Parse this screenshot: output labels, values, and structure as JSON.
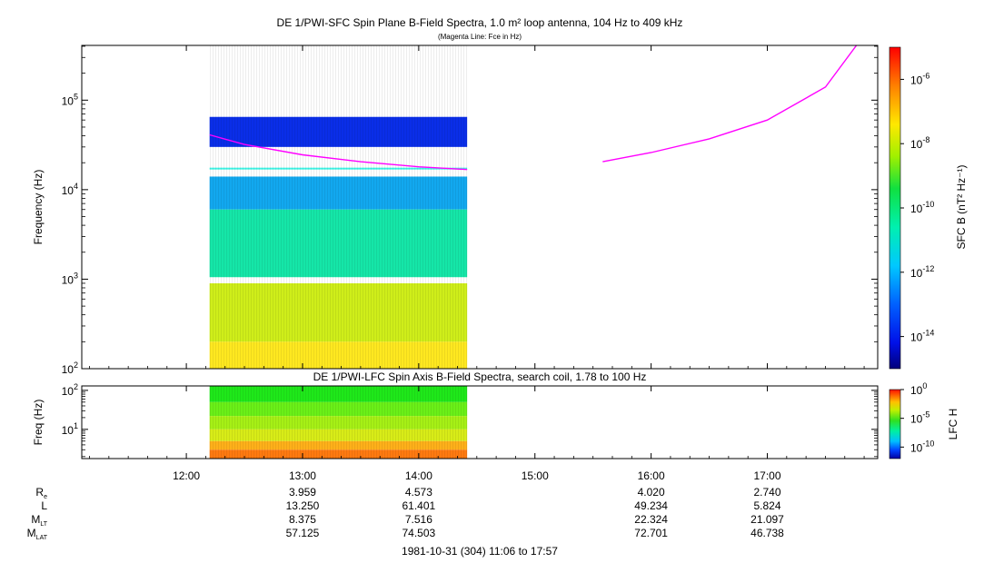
{
  "chart_data": [
    {
      "type": "heatmap",
      "title": "DE 1/PWI-SFC  Spin Plane B-Field Spectra, 1.0 m² loop antenna, 104 Hz to 409 kHz",
      "subtitle": "(Magenta Line: Fce in Hz)",
      "ylabel": "Frequency (Hz)",
      "yscale": "log",
      "ylim": [
        100,
        409000
      ],
      "y_ticks": [
        {
          "value": 100,
          "base": "10",
          "exp": "2"
        },
        {
          "value": 1000,
          "base": "10",
          "exp": "3"
        },
        {
          "value": 10000,
          "base": "10",
          "exp": "4"
        },
        {
          "value": 100000,
          "base": "10",
          "exp": "5"
        }
      ],
      "xlim": [
        "11:06",
        "17:57"
      ],
      "data_interval": [
        "12:12",
        "14:25"
      ],
      "data_gaps_hz": [
        [
          900,
          1050
        ]
      ],
      "spectral_bands": [
        {
          "f_range": [
            30000,
            65000
          ],
          "level": "~1e-14",
          "color": "#0a2ee8"
        },
        {
          "f_range": [
            16800,
            17600
          ],
          "level": "~1e-12",
          "color": "#3ff5e6"
        },
        {
          "f_range": [
            6000,
            14000
          ],
          "level": "~1e-12",
          "color": "#12a8ef"
        },
        {
          "f_range": [
            1050,
            6000
          ],
          "level": "~1e-11",
          "color": "#15e6a8"
        },
        {
          "f_range": [
            200,
            900
          ],
          "level": "~1e-9",
          "color": "#cfee1a"
        },
        {
          "f_range": [
            100,
            200
          ],
          "level": "~1e-8",
          "color": "#ffe820"
        }
      ],
      "fce_line": {
        "name": "Fce in Hz",
        "color": "#ff00ff",
        "segments": [
          {
            "t": [
              "12:12",
              "12:30",
              "13:00",
              "13:30",
              "14:00",
              "14:25"
            ],
            "f": [
              41000,
              32000,
              24500,
              20500,
              18000,
              16800
            ]
          },
          {
            "t": [
              "15:35",
              "16:00",
              "16:30",
              "17:00",
              "17:30",
              "17:46"
            ],
            "f": [
              20500,
              26000,
              37000,
              60000,
              140000,
              409000
            ]
          }
        ]
      },
      "colorbar": {
        "label": "SFC B (nT² Hz⁻¹)",
        "scale": "log",
        "range": [
          1e-15,
          1e-05
        ],
        "ticks": [
          {
            "value": 1e-06,
            "base": "10",
            "exp": "-6"
          },
          {
            "value": 1e-08,
            "base": "10",
            "exp": "-8"
          },
          {
            "value": 1e-10,
            "base": "10",
            "exp": "-10"
          },
          {
            "value": 1e-12,
            "base": "10",
            "exp": "-12"
          },
          {
            "value": 1e-14,
            "base": "10",
            "exp": "-14"
          }
        ]
      }
    },
    {
      "type": "heatmap",
      "title": "DE 1/PWI-LFC  Spin Axis B-Field Spectra, search coil, 1.78 to 100 Hz",
      "ylabel": "Freq (Hz)",
      "yscale": "log",
      "ylim": [
        1.78,
        130
      ],
      "y_ticks": [
        {
          "value": 10,
          "base": "10",
          "exp": "1"
        },
        {
          "value": 100,
          "base": "10",
          "exp": "2"
        }
      ],
      "xlim": [
        "11:06",
        "17:57"
      ],
      "data_interval": [
        "12:12",
        "14:25"
      ],
      "spectral_bands": [
        {
          "f_range": [
            50,
            130
          ],
          "level": "~1e-6",
          "color": "#1fe81a"
        },
        {
          "f_range": [
            22,
            50
          ],
          "level": "~1e-5",
          "color": "#6af018"
        },
        {
          "f_range": [
            10,
            22
          ],
          "level": "~1e-4",
          "color": "#a6f016"
        },
        {
          "f_range": [
            5,
            10
          ],
          "level": "~1e-3",
          "color": "#d8ec18"
        },
        {
          "f_range": [
            3,
            5
          ],
          "level": "~1e-2",
          "color": "#ffb01a"
        },
        {
          "f_range": [
            1.78,
            3
          ],
          "level": "~1e-1",
          "color": "#ff7a10"
        }
      ],
      "colorbar": {
        "label": "LFC H",
        "scale": "log",
        "range": [
          1e-12,
          1
        ],
        "ticks": [
          {
            "value": 1,
            "base": "10",
            "exp": "0"
          },
          {
            "value": 1e-05,
            "base": "10",
            "exp": "-5"
          },
          {
            "value": 1e-10,
            "base": "10",
            "exp": "-10"
          }
        ]
      }
    }
  ],
  "time_axis": {
    "ticks": [
      "12:00",
      "13:00",
      "14:00",
      "15:00",
      "16:00",
      "17:00"
    ],
    "tick_minutes": [
      720,
      780,
      840,
      900,
      960,
      1020
    ],
    "start_minutes": 666,
    "end_minutes": 1077
  },
  "ephemeris": {
    "rows": [
      {
        "label_main": "R",
        "label_sub": "e",
        "values": [
          "3.959",
          "4.573",
          "",
          "4.020",
          "2.740"
        ]
      },
      {
        "label_main": "L",
        "label_sub": "",
        "values": [
          "13.250",
          "61.401",
          "",
          "49.234",
          "5.824"
        ]
      },
      {
        "label_main": "M",
        "label_sub": "LT",
        "values": [
          "8.375",
          "7.516",
          "",
          "22.324",
          "21.097"
        ]
      },
      {
        "label_main": "M",
        "label_sub": "LAT",
        "values": [
          "57.125",
          "74.503",
          "",
          "72.701",
          "46.738"
        ]
      }
    ],
    "column_times": [
      "13:00",
      "14:00",
      "15:00",
      "16:00",
      "17:00"
    ]
  },
  "footer": "1981-10-31 (304) 11:06 to 17:57"
}
